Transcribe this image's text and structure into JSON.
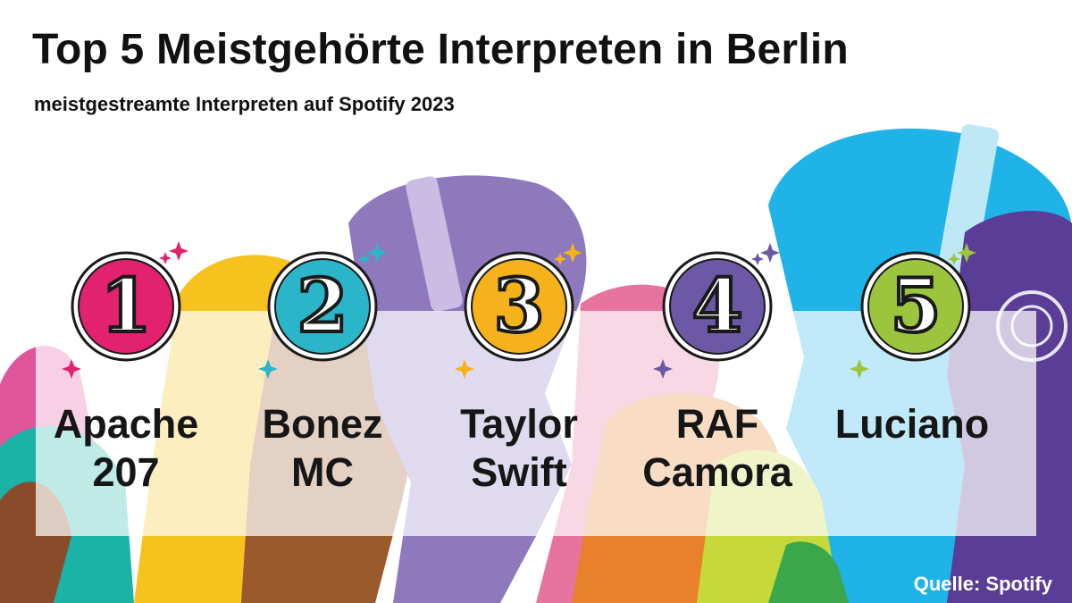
{
  "header": {
    "title": "Top 5 Meistgehörte Interpreten in Berlin",
    "subtitle": "meistgestreamte Interpreten auf Spotify 2023"
  },
  "ranking": [
    {
      "rank": "1",
      "artist": "Apache\n207",
      "color": "#e2216f"
    },
    {
      "rank": "2",
      "artist": "Bonez\nMC",
      "color": "#2bb5c9"
    },
    {
      "rank": "3",
      "artist": "Taylor\nSwift",
      "color": "#f6b21b"
    },
    {
      "rank": "4",
      "artist": "RAF\nCamora",
      "color": "#6c59a6"
    },
    {
      "rank": "5",
      "artist": "Luciano",
      "color": "#9bc53d"
    }
  ],
  "footer": {
    "source": "Quelle: Spotify"
  }
}
